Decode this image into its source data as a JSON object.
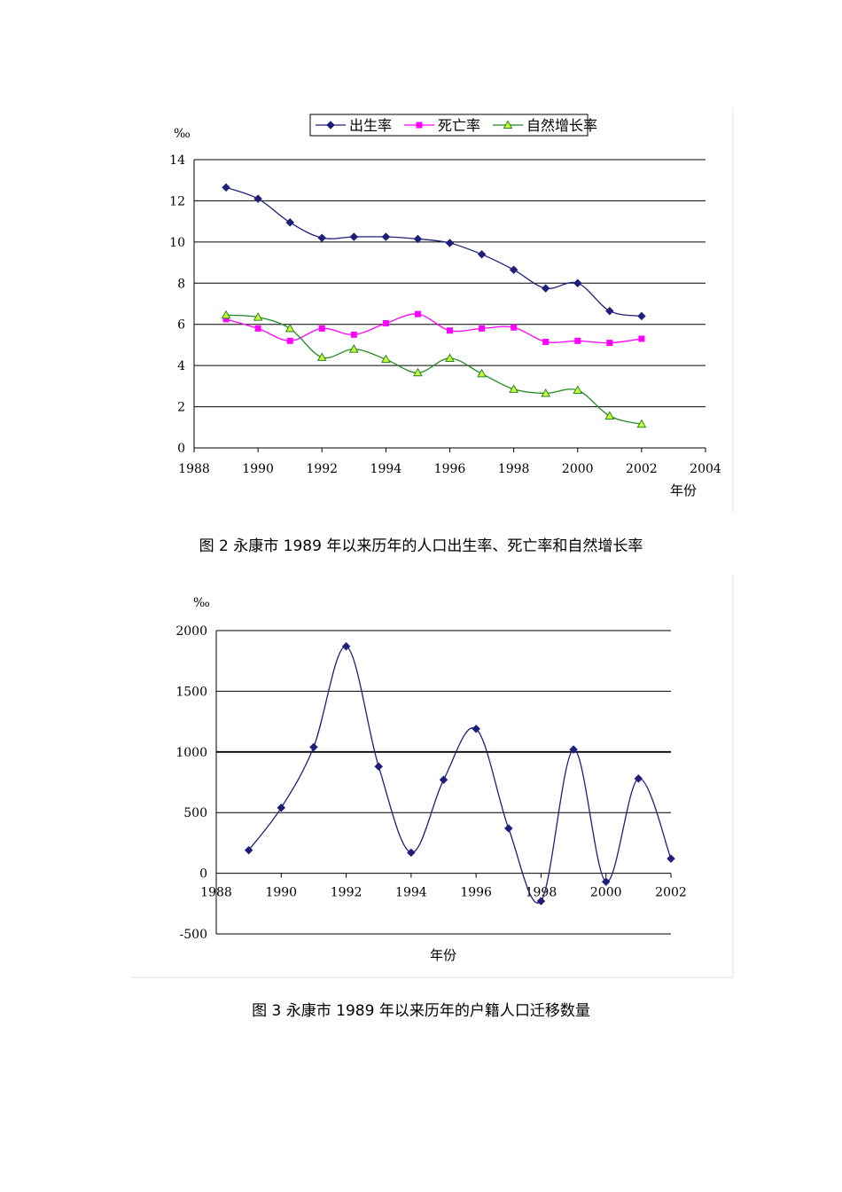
{
  "charts": [
    {
      "type": "line",
      "unit_label": "‰",
      "xlabel": "年份",
      "xlim": [
        1988,
        2004
      ],
      "xticks": [
        1988,
        1990,
        1992,
        1994,
        1996,
        1998,
        2000,
        2002,
        2004
      ],
      "ylim": [
        0,
        14
      ],
      "yticks": [
        0,
        2,
        4,
        6,
        8,
        10,
        12,
        14
      ],
      "grid": true,
      "legend_position": "top",
      "x": [
        1989,
        1990,
        1991,
        1992,
        1993,
        1994,
        1995,
        1996,
        1997,
        1998,
        1999,
        2000,
        2001,
        2002
      ],
      "series": [
        {
          "name": "出生率",
          "color": "#1f1f7a",
          "marker": "diamond",
          "values": [
            12.65,
            12.1,
            10.95,
            10.2,
            10.25,
            10.25,
            10.15,
            9.95,
            9.4,
            8.65,
            7.75,
            8.0,
            6.65,
            6.4
          ]
        },
        {
          "name": "死亡率",
          "color": "#ff00ff",
          "marker": "square",
          "values": [
            6.25,
            5.8,
            5.2,
            5.8,
            5.5,
            6.05,
            6.5,
            5.7,
            5.8,
            5.85,
            5.15,
            5.2,
            5.1,
            5.3
          ]
        },
        {
          "name": "自然增长率",
          "color": "#228822",
          "marker": "triangle",
          "values": [
            6.45,
            6.35,
            5.8,
            4.4,
            4.8,
            4.3,
            3.65,
            4.35,
            3.6,
            2.85,
            2.65,
            2.8,
            1.55,
            1.15
          ]
        }
      ],
      "caption": "图 2 永康市 1989 年以来历年的人口出生率、死亡率和自然增长率"
    },
    {
      "type": "line",
      "unit_label": "‰",
      "xlabel": "年份",
      "xlim": [
        1988,
        2002
      ],
      "xticks": [
        1988,
        1990,
        1992,
        1994,
        1996,
        1998,
        2000,
        2002
      ],
      "ylim": [
        -500,
        2000
      ],
      "yticks": [
        -500,
        0,
        500,
        1000,
        1500,
        2000
      ],
      "grid": true,
      "x": [
        1989,
        1990,
        1991,
        1992,
        1993,
        1994,
        1995,
        1996,
        1997,
        1998,
        1999,
        2000,
        2001,
        2002
      ],
      "series": [
        {
          "color": "#1f1f7a",
          "marker": "diamond",
          "values": [
            190,
            540,
            1040,
            1870,
            880,
            170,
            770,
            1190,
            370,
            -230,
            1020,
            -70,
            780,
            120
          ]
        }
      ],
      "caption": "图 3 永康市 1989 年以来历年的户籍人口迁移数量"
    }
  ]
}
